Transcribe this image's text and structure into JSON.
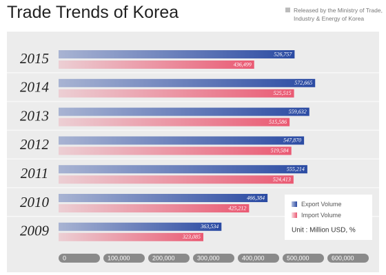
{
  "chart_data": {
    "type": "hbar",
    "title": "Trade Trends of Korea",
    "note": "Released by the Ministry of Trade, Industry & Energy of Korea",
    "unit_note": "Unit : Million USD, %",
    "categories": [
      "2015",
      "2014",
      "2013",
      "2012",
      "2011",
      "2010",
      "2009"
    ],
    "series": [
      {
        "name": "Export Volume",
        "color": "#2b4ba3",
        "values": [
          526757,
          572665,
          559632,
          547870,
          555214,
          466384,
          363534
        ],
        "value_labels": [
          "526,757",
          "572,665",
          "559,632",
          "547,870",
          "555,214",
          "466,384",
          "363,534"
        ]
      },
      {
        "name": "Import Volume",
        "color": "#ea5a73",
        "values": [
          436499,
          525515,
          515586,
          519584,
          524413,
          425212,
          323085
        ],
        "value_labels": [
          "436,499",
          "525,515",
          "515,586",
          "519,584",
          "524,413",
          "425,212",
          "323,085"
        ]
      }
    ],
    "xlim": [
      0,
      600000
    ],
    "xticks": [
      0,
      {
        "value": 100000,
        "label": "100,000"
      },
      {
        "value": 200000,
        "label": "200,000"
      },
      {
        "value": 300000,
        "label": "300,000"
      },
      {
        "value": 400000,
        "label": "400,000"
      },
      {
        "value": 500000,
        "label": "500,000"
      },
      {
        "value": 600000,
        "label": "600,000"
      }
    ],
    "legend": "lower right"
  }
}
